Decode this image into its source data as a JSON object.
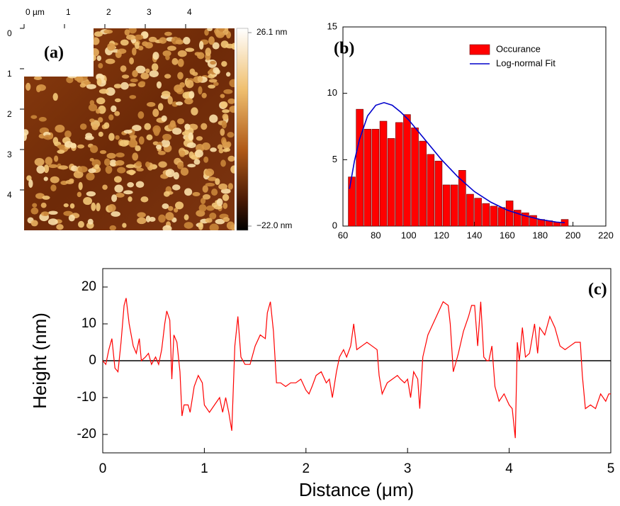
{
  "chart_data": [
    {
      "type": "image",
      "label": "(a)",
      "xlim": [
        0,
        5
      ],
      "ylim": [
        0,
        5
      ],
      "xticks": [
        {
          "value": 0,
          "label": "0 µm"
        },
        1,
        2,
        3,
        4
      ],
      "yticks": [
        0,
        1,
        2,
        3,
        4
      ],
      "colorbar": {
        "lim": [
          -22.0,
          26.1
        ],
        "ticks": [
          {
            "value": 26.1,
            "label": "26.1 nm"
          },
          {
            "value": -22.0,
            "label": "−22.0 nm"
          }
        ]
      }
    },
    {
      "type": "histogram",
      "label": "(b)",
      "xlim": [
        60,
        220
      ],
      "ylim": [
        0,
        15
      ],
      "xticks": [
        60,
        80,
        100,
        120,
        140,
        160,
        180,
        200,
        220
      ],
      "yticks": [
        0,
        5,
        10,
        15
      ],
      "legend": "upper right",
      "series": [
        {
          "name": "Occurance",
          "type": "bar",
          "color": "#ff0000",
          "bins": [
            63,
            67.8,
            72.6,
            77.4,
            82.2,
            87,
            91.8,
            96.6,
            101.4,
            106.2,
            111,
            115.8,
            120.6,
            125.4,
            130.2,
            135,
            139.8,
            144.6,
            149.4,
            154.2,
            159,
            163.8,
            168.6,
            173.4,
            178.2,
            183,
            187.8,
            192.6,
            197.4
          ],
          "values": [
            3.7,
            8.8,
            7.3,
            7.3,
            7.9,
            6.6,
            7.8,
            8.4,
            7.4,
            6.4,
            5.4,
            4.9,
            3.1,
            3.1,
            4.2,
            2.4,
            2.1,
            1.7,
            1.5,
            1.4,
            1.9,
            1.2,
            1.0,
            0.8,
            0.5,
            0.4,
            0.3,
            0.5
          ]
        },
        {
          "name": "Log-normal Fit",
          "type": "line",
          "color": "#0000cc",
          "x": [
            64,
            67,
            70,
            75,
            80,
            85,
            90,
            95,
            100,
            110,
            120,
            130,
            140,
            150,
            160,
            170,
            180,
            190,
            195
          ],
          "values": [
            2.8,
            4.9,
            6.5,
            8.3,
            9.1,
            9.3,
            9.1,
            8.6,
            8.0,
            6.5,
            5.0,
            3.7,
            2.6,
            1.8,
            1.2,
            0.8,
            0.5,
            0.3,
            0.25
          ]
        }
      ]
    },
    {
      "type": "line",
      "label": "(c)",
      "xlabel": "Distance (μm)",
      "ylabel": "Height (nm)",
      "xlim": [
        0,
        5
      ],
      "ylim": [
        -25,
        25
      ],
      "xticks": [
        0,
        1,
        2,
        3,
        4,
        5
      ],
      "yticks": [
        -20,
        -10,
        0,
        10,
        20
      ],
      "reference_line": 0,
      "series": [
        {
          "color": "#ff0000",
          "x": [
            0,
            0.03,
            0.06,
            0.09,
            0.12,
            0.15,
            0.18,
            0.21,
            0.23,
            0.26,
            0.3,
            0.33,
            0.36,
            0.38,
            0.42,
            0.45,
            0.48,
            0.52,
            0.55,
            0.58,
            0.61,
            0.63,
            0.66,
            0.68,
            0.7,
            0.73,
            0.76,
            0.78,
            0.8,
            0.84,
            0.86,
            0.9,
            0.94,
            0.98,
            1.0,
            1.05,
            1.1,
            1.15,
            1.18,
            1.21,
            1.24,
            1.27,
            1.3,
            1.33,
            1.36,
            1.4,
            1.45,
            1.5,
            1.55,
            1.6,
            1.62,
            1.65,
            1.68,
            1.71,
            1.75,
            1.8,
            1.85,
            1.9,
            1.95,
            2.0,
            2.03,
            2.06,
            2.1,
            2.15,
            2.2,
            2.23,
            2.26,
            2.3,
            2.33,
            2.37,
            2.4,
            2.44,
            2.47,
            2.5,
            2.55,
            2.6,
            2.65,
            2.7,
            2.72,
            2.75,
            2.8,
            2.85,
            2.9,
            2.93,
            2.97,
            3.0,
            3.03,
            3.06,
            3.1,
            3.12,
            3.15,
            3.2,
            3.25,
            3.3,
            3.35,
            3.4,
            3.42,
            3.45,
            3.5,
            3.55,
            3.6,
            3.63,
            3.66,
            3.69,
            3.72,
            3.75,
            3.78,
            3.8,
            3.83,
            3.86,
            3.9,
            3.95,
            4.0,
            4.03,
            4.06,
            4.08,
            4.1,
            4.13,
            4.16,
            4.2,
            4.25,
            4.28,
            4.3,
            4.35,
            4.4,
            4.45,
            4.5,
            4.55,
            4.6,
            4.65,
            4.7,
            4.72,
            4.75,
            4.8,
            4.85,
            4.9,
            4.95,
            4.98,
            5.0
          ],
          "values": [
            0,
            -1,
            3,
            6,
            -2,
            -3,
            5,
            15,
            17,
            10,
            4,
            2,
            6,
            0,
            1,
            2,
            -1,
            1,
            -1,
            3,
            10,
            13.5,
            11,
            -5,
            7,
            5,
            -3,
            -15,
            -12,
            -12,
            -14,
            -7,
            -4,
            -6,
            -12,
            -14,
            -12,
            -10,
            -14,
            -10,
            -14,
            -19,
            4,
            12,
            1,
            -1,
            -1,
            4,
            7,
            6,
            13,
            16,
            8,
            -6,
            -6,
            -7,
            -6,
            -6,
            -5,
            -8,
            -9,
            -7,
            -4,
            -3,
            -6,
            -5,
            -10,
            -3,
            1,
            3,
            1,
            4,
            10,
            3,
            4,
            5,
            4,
            3,
            -4,
            -9,
            -6,
            -5,
            -4,
            -5,
            -6,
            -5,
            -10,
            -3,
            -5,
            -13,
            1,
            7,
            10,
            13,
            16,
            15,
            10,
            -3,
            2,
            8,
            12,
            15,
            15,
            4,
            16,
            1,
            0,
            0,
            4,
            -7,
            -11,
            -9,
            -12,
            -13,
            -21,
            5,
            0,
            9,
            1,
            2,
            10,
            2,
            9,
            7,
            12,
            9,
            4,
            3,
            4,
            5,
            5,
            -4,
            -13,
            -12,
            -13,
            -9,
            -11,
            -9,
            -9
          ]
        }
      ]
    }
  ]
}
